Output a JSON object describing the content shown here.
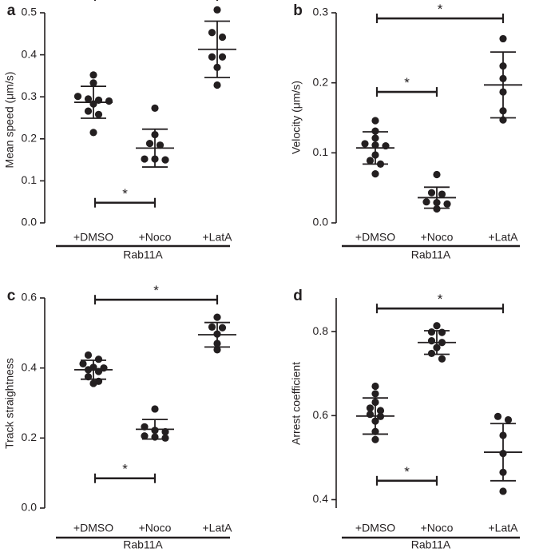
{
  "chart_data": [
    {
      "type": "scatter",
      "panel_label": "a",
      "ylabel": "Mean speed (μm/s)",
      "ylim": [
        0,
        0.5
      ],
      "yticks": [
        0.0,
        0.1,
        0.2,
        0.3,
        0.4,
        0.5
      ],
      "tick_labels": [
        "0.0",
        "0.1",
        "0.2",
        "0.3",
        "0.4",
        "0.5"
      ],
      "categories": [
        "+DMSO",
        "+Noco",
        "+LatA"
      ],
      "group_label": "Rab11A",
      "series": [
        {
          "name": "+DMSO",
          "points": [
            0.352,
            0.333,
            0.301,
            0.295,
            0.283,
            0.292,
            0.29,
            0.266,
            0.258,
            0.215
          ],
          "mean": 0.287,
          "sd": 0.038
        },
        {
          "name": "+Noco",
          "points": [
            0.273,
            0.21,
            0.189,
            0.185,
            0.152,
            0.15,
            0.152
          ],
          "mean": 0.178,
          "sd": 0.045
        },
        {
          "name": "+LatA",
          "points": [
            0.507,
            0.453,
            0.442,
            0.395,
            0.395,
            0.37,
            0.328
          ],
          "mean": 0.413,
          "sd": 0.067
        }
      ],
      "brackets": [
        {
          "from": 0,
          "to": 2,
          "y": 0.54,
          "side": "top",
          "label": "*"
        },
        {
          "from": 0,
          "to": 1,
          "y": 0.048,
          "side": "bottom",
          "label": "*"
        }
      ]
    },
    {
      "type": "scatter",
      "panel_label": "b",
      "ylabel": "Velocity (μm/s)",
      "ylim": [
        0,
        0.3
      ],
      "yticks": [
        0.0,
        0.1,
        0.2,
        0.3
      ],
      "tick_labels": [
        "0.0",
        "0.1",
        "0.2",
        "0.3"
      ],
      "categories": [
        "+DMSO",
        "+Noco",
        "+LatA"
      ],
      "group_label": "Rab11A",
      "series": [
        {
          "name": "+DMSO",
          "points": [
            0.146,
            0.131,
            0.121,
            0.113,
            0.111,
            0.11,
            0.097,
            0.089,
            0.084,
            0.07
          ],
          "mean": 0.107,
          "sd": 0.023
        },
        {
          "name": "+Noco",
          "points": [
            0.069,
            0.043,
            0.041,
            0.03,
            0.029,
            0.027,
            0.02
          ],
          "mean": 0.036,
          "sd": 0.015
        },
        {
          "name": "+LatA",
          "points": [
            0.263,
            0.224,
            0.206,
            0.187,
            0.16,
            0.147
          ],
          "mean": 0.197,
          "sd": 0.047
        }
      ],
      "brackets": [
        {
          "from": 0,
          "to": 2,
          "y": 0.292,
          "side": "top",
          "label": "*"
        },
        {
          "from": 0,
          "to": 1,
          "y": 0.187,
          "side": "top",
          "label": "*"
        }
      ]
    },
    {
      "type": "scatter",
      "panel_label": "c",
      "ylabel": "Track straightness",
      "ylim": [
        0,
        0.6
      ],
      "yticks": [
        0.0,
        0.2,
        0.4,
        0.6
      ],
      "tick_labels": [
        "0.0",
        "0.2",
        "0.4",
        "0.6"
      ],
      "categories": [
        "+DMSO",
        "+Noco",
        "+LatA"
      ],
      "group_label": "Rab11A",
      "series": [
        {
          "name": "+DMSO",
          "points": [
            0.437,
            0.425,
            0.412,
            0.402,
            0.4,
            0.395,
            0.39,
            0.375,
            0.362,
            0.356
          ],
          "mean": 0.395,
          "sd": 0.027
        },
        {
          "name": "+Noco",
          "points": [
            0.283,
            0.232,
            0.222,
            0.218,
            0.206,
            0.203,
            0.2
          ],
          "mean": 0.225,
          "sd": 0.028
        },
        {
          "name": "+LatA",
          "points": [
            0.545,
            0.517,
            0.515,
            0.497,
            0.47,
            0.452
          ],
          "mean": 0.495,
          "sd": 0.035
        }
      ],
      "brackets": [
        {
          "from": 0,
          "to": 2,
          "y": 0.595,
          "side": "top",
          "label": "*"
        },
        {
          "from": 0,
          "to": 1,
          "y": 0.085,
          "side": "bottom",
          "label": "*"
        }
      ]
    },
    {
      "type": "scatter",
      "panel_label": "d",
      "ylabel": "Arrest coefficient",
      "ylim": [
        0.38,
        0.88
      ],
      "yticks": [
        0.4,
        0.6,
        0.8
      ],
      "tick_labels": [
        "0.4",
        "0.6",
        "0.8"
      ],
      "categories": [
        "+DMSO",
        "+Noco",
        "+LatA"
      ],
      "group_label": "Rab11A",
      "series": [
        {
          "name": "+DMSO",
          "points": [
            0.67,
            0.652,
            0.632,
            0.618,
            0.612,
            0.603,
            0.598,
            0.587,
            0.562,
            0.543
          ],
          "mean": 0.599,
          "sd": 0.043
        },
        {
          "name": "+Noco",
          "points": [
            0.814,
            0.799,
            0.798,
            0.778,
            0.774,
            0.762,
            0.748,
            0.735
          ],
          "mean": 0.774,
          "sd": 0.028
        },
        {
          "name": "+LatA",
          "points": [
            0.598,
            0.59,
            0.553,
            0.51,
            0.465,
            0.42
          ],
          "mean": 0.513,
          "sd": 0.068
        }
      ],
      "brackets": [
        {
          "from": 0,
          "to": 2,
          "y": 0.855,
          "side": "top",
          "label": "*"
        },
        {
          "from": 0,
          "to": 1,
          "y": 0.445,
          "side": "bottom",
          "label": "*"
        }
      ]
    }
  ]
}
